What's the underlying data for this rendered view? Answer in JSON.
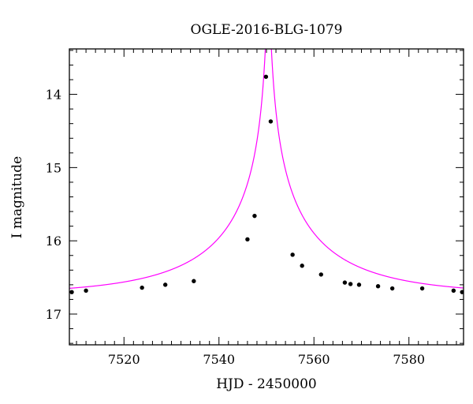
{
  "chart_data": {
    "type": "scatter",
    "title": "OGLE-2016-BLG-1079",
    "xlabel": "HJD - 2450000",
    "ylabel": "I magnitude",
    "xlim": [
      7508.5,
      7591.5
    ],
    "ylim": [
      17.42,
      13.38
    ],
    "y_inverted": true,
    "x_ticks": [
      7520,
      7540,
      7560,
      7580
    ],
    "y_ticks": [
      14,
      15,
      16,
      17
    ],
    "x_minor_step": 2,
    "y_minor_step": 0.2,
    "grid": false,
    "series": [
      {
        "kind": "points",
        "color": "#000000",
        "x": [
          7509.0,
          7512.0,
          7523.8,
          7528.7,
          7534.7,
          7546.0,
          7547.5,
          7549.9,
          7550.9,
          7555.5,
          7557.5,
          7561.5,
          7566.5,
          7567.7,
          7569.5,
          7573.5,
          7576.5,
          7582.8,
          7589.4,
          7591.2
        ],
        "y": [
          16.7,
          16.68,
          16.64,
          16.6,
          16.55,
          15.98,
          15.66,
          13.76,
          14.37,
          16.19,
          16.34,
          16.46,
          16.57,
          16.59,
          16.6,
          16.62,
          16.65,
          16.65,
          16.68,
          16.7
        ]
      },
      {
        "kind": "model-curve",
        "color": "#ff00ff",
        "model": "pspl",
        "t0": 7550.4,
        "tE": 30,
        "u0": 0.0115,
        "baseline": 16.735,
        "fs": 0.52
      }
    ]
  }
}
